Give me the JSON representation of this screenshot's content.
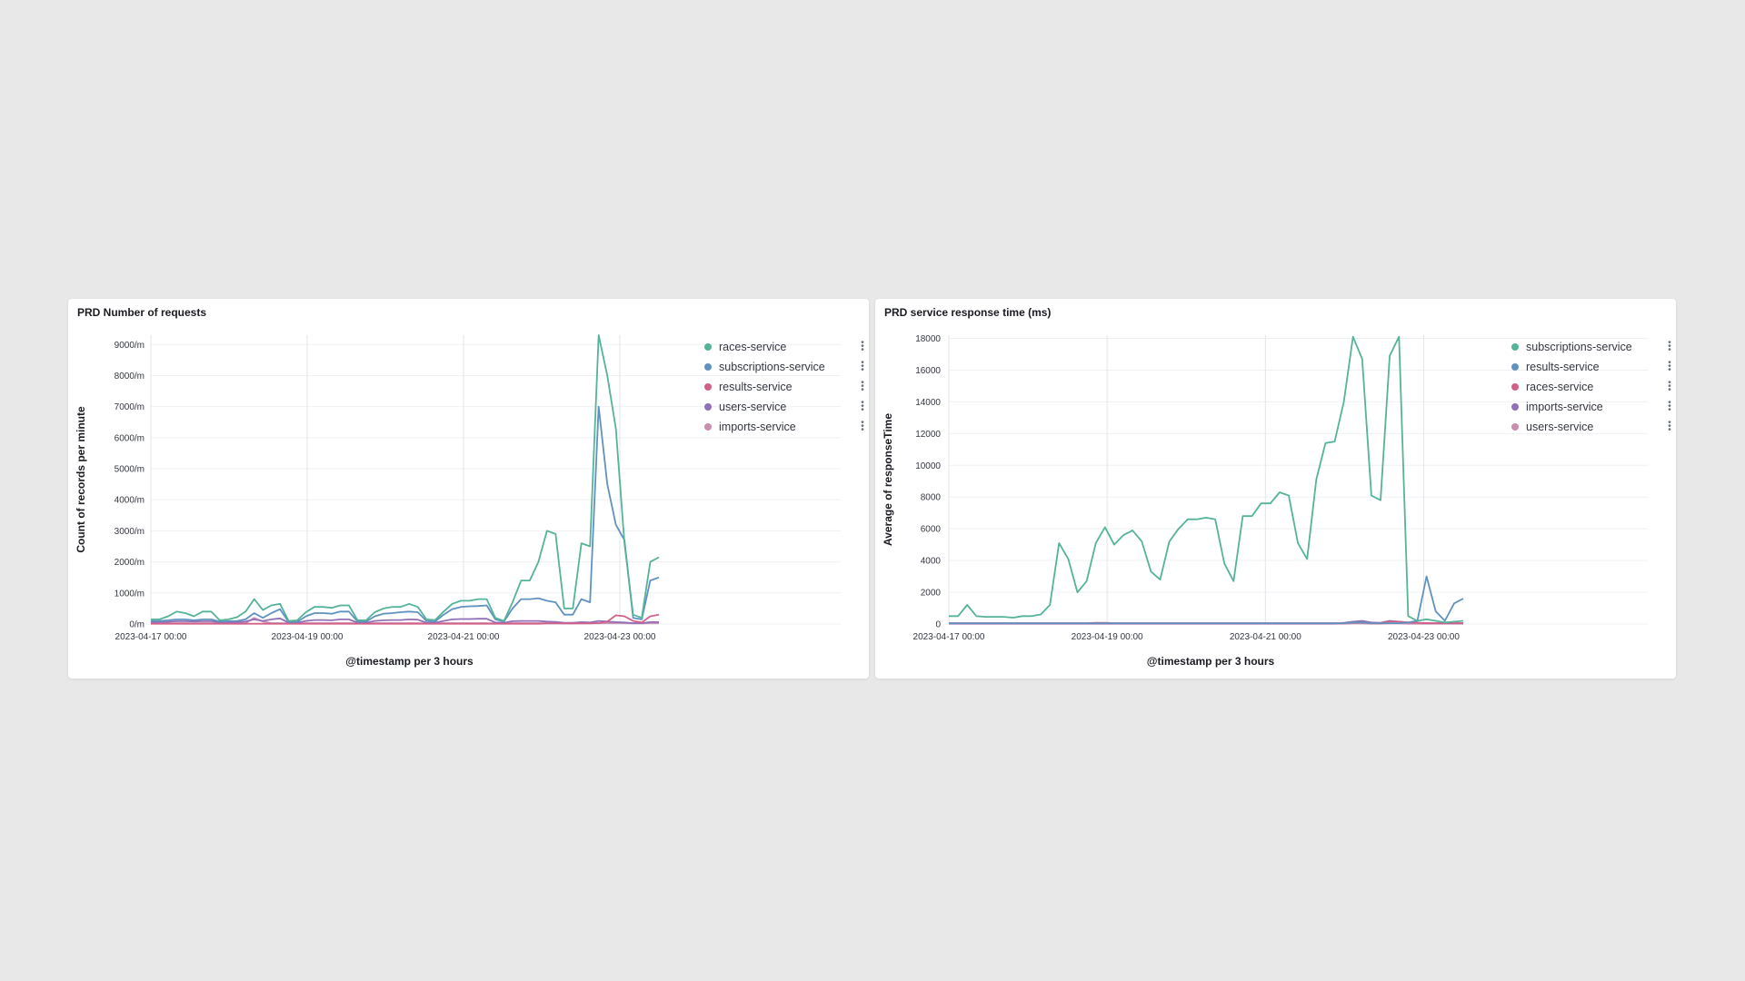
{
  "panels": [
    {
      "title": "PRD Number of requests",
      "legend": [
        {
          "label": "races-service",
          "color": "#54b399"
        },
        {
          "label": "subscriptions-service",
          "color": "#6092c0"
        },
        {
          "label": "results-service",
          "color": "#d36086"
        },
        {
          "label": "users-service",
          "color": "#9170b8"
        },
        {
          "label": "imports-service",
          "color": "#ca8eae"
        }
      ]
    },
    {
      "title": "PRD service response time (ms)",
      "legend": [
        {
          "label": "subscriptions-service",
          "color": "#54b399"
        },
        {
          "label": "results-service",
          "color": "#6092c0"
        },
        {
          "label": "races-service",
          "color": "#d36086"
        },
        {
          "label": "imports-service",
          "color": "#9170b8"
        },
        {
          "label": "users-service",
          "color": "#ca8eae"
        }
      ]
    }
  ],
  "chart_data": [
    {
      "type": "line",
      "title": "PRD Number of requests",
      "xlabel": "@timestamp per 3 hours",
      "ylabel": "Count of records per minute",
      "ylim": [
        0,
        9300
      ],
      "yticks": [
        0,
        1000,
        2000,
        3000,
        4000,
        5000,
        6000,
        7000,
        8000,
        9000
      ],
      "ytick_labels": [
        "0/m",
        "1000/m",
        "2000/m",
        "3000/m",
        "4000/m",
        "5000/m",
        "6000/m",
        "7000/m",
        "8000/m",
        "9000/m"
      ],
      "xlim_hours": [
        0,
        156
      ],
      "xtick_labels": [
        "2023-04-17 00:00",
        "2023-04-19 00:00",
        "2023-04-21 00:00",
        "2023-04-23 00:00"
      ],
      "grid": true,
      "legend_position": "right",
      "series": [
        {
          "name": "races-service",
          "color": "#54b399",
          "values": [
            150,
            150,
            250,
            400,
            350,
            250,
            400,
            400,
            120,
            150,
            220,
            400,
            800,
            450,
            600,
            650,
            100,
            120,
            380,
            550,
            550,
            520,
            600,
            600,
            120,
            120,
            380,
            500,
            550,
            550,
            650,
            550,
            150,
            130,
            400,
            650,
            750,
            750,
            800,
            800,
            200,
            100,
            700,
            1400,
            1400,
            2000,
            3000,
            2900,
            500,
            500,
            2600,
            2500,
            9300,
            8000,
            6300,
            2600,
            300,
            200,
            2000,
            2150
          ]
        },
        {
          "name": "subscriptions-service",
          "color": "#6092c0",
          "values": [
            100,
            100,
            120,
            150,
            150,
            120,
            150,
            150,
            80,
            90,
            100,
            150,
            350,
            200,
            350,
            480,
            60,
            70,
            250,
            350,
            350,
            330,
            400,
            400,
            80,
            80,
            250,
            330,
            350,
            380,
            400,
            380,
            100,
            80,
            300,
            480,
            550,
            570,
            580,
            600,
            150,
            80,
            500,
            800,
            800,
            830,
            750,
            700,
            300,
            300,
            800,
            700,
            7000,
            4500,
            3200,
            2700,
            200,
            150,
            1400,
            1500
          ]
        },
        {
          "name": "results-service",
          "color": "#d36086",
          "values": [
            10,
            10,
            10,
            10,
            10,
            10,
            10,
            10,
            10,
            10,
            10,
            10,
            10,
            10,
            10,
            10,
            10,
            10,
            10,
            10,
            10,
            10,
            10,
            10,
            10,
            10,
            10,
            10,
            10,
            10,
            10,
            10,
            10,
            10,
            10,
            10,
            10,
            10,
            10,
            10,
            10,
            10,
            10,
            10,
            10,
            10,
            20,
            20,
            20,
            20,
            20,
            20,
            30,
            80,
            280,
            250,
            100,
            50,
            250,
            300
          ]
        },
        {
          "name": "users-service",
          "color": "#9170b8",
          "values": [
            60,
            60,
            70,
            90,
            90,
            80,
            90,
            90,
            50,
            50,
            60,
            80,
            150,
            100,
            150,
            180,
            40,
            40,
            100,
            130,
            130,
            120,
            150,
            150,
            40,
            40,
            100,
            120,
            130,
            130,
            150,
            140,
            40,
            40,
            100,
            150,
            160,
            160,
            170,
            170,
            50,
            40,
            90,
            100,
            100,
            100,
            80,
            70,
            40,
            40,
            60,
            50,
            100,
            80,
            60,
            50,
            30,
            30,
            60,
            60
          ]
        },
        {
          "name": "imports-service",
          "color": "#ca8eae",
          "values": [
            20,
            20,
            20,
            30,
            30,
            20,
            30,
            30,
            20,
            20,
            20,
            30,
            200,
            80,
            30,
            30,
            20,
            20,
            30,
            30,
            30,
            30,
            30,
            30,
            20,
            20,
            30,
            30,
            30,
            30,
            30,
            30,
            20,
            20,
            30,
            30,
            30,
            30,
            30,
            30,
            20,
            20,
            30,
            30,
            30,
            30,
            30,
            30,
            20,
            20,
            30,
            30,
            30,
            30,
            30,
            30,
            20,
            20,
            30,
            30
          ]
        }
      ]
    },
    {
      "type": "line",
      "title": "PRD service response time (ms)",
      "xlabel": "@timestamp per 3 hours",
      "ylabel": "Average of responseTime",
      "ylim": [
        0,
        18200
      ],
      "yticks": [
        0,
        2000,
        4000,
        6000,
        8000,
        10000,
        12000,
        14000,
        16000,
        18000
      ],
      "ytick_labels": [
        "0",
        "2000",
        "4000",
        "6000",
        "8000",
        "10000",
        "12000",
        "14000",
        "16000",
        "18000"
      ],
      "xlim_hours": [
        0,
        156
      ],
      "xtick_labels": [
        "2023-04-17 00:00",
        "2023-04-19 00:00",
        "2023-04-21 00:00",
        "2023-04-23 00:00"
      ],
      "grid": true,
      "legend_position": "right",
      "series": [
        {
          "name": "subscriptions-service",
          "color": "#54b399",
          "values": [
            500,
            500,
            1200,
            500,
            450,
            450,
            450,
            400,
            500,
            500,
            600,
            1200,
            5100,
            4100,
            2000,
            2700,
            5100,
            6100,
            5000,
            5600,
            5900,
            5200,
            3300,
            2800,
            5200,
            6000,
            6600,
            6600,
            6700,
            6600,
            3800,
            2700,
            6800,
            6800,
            7600,
            7600,
            8300,
            8100,
            5100,
            4100,
            9100,
            11400,
            11500,
            14000,
            18100,
            16700,
            8100,
            7800,
            16900,
            18100,
            500,
            200,
            300,
            200,
            100,
            150,
            200
          ]
        },
        {
          "name": "results-service",
          "color": "#6092c0",
          "values": [
            50,
            50,
            50,
            50,
            50,
            50,
            50,
            50,
            50,
            50,
            50,
            50,
            50,
            50,
            50,
            50,
            50,
            50,
            50,
            50,
            50,
            50,
            50,
            50,
            50,
            50,
            50,
            50,
            50,
            50,
            50,
            50,
            50,
            50,
            50,
            50,
            50,
            50,
            50,
            50,
            50,
            50,
            50,
            50,
            100,
            100,
            50,
            50,
            50,
            50,
            100,
            200,
            3000,
            800,
            200,
            1300,
            1600
          ]
        },
        {
          "name": "races-service",
          "color": "#d36086",
          "values": [
            60,
            60,
            60,
            60,
            60,
            60,
            60,
            60,
            60,
            60,
            60,
            60,
            60,
            60,
            60,
            60,
            80,
            80,
            60,
            60,
            60,
            60,
            60,
            60,
            60,
            60,
            60,
            60,
            60,
            60,
            60,
            60,
            60,
            60,
            60,
            60,
            60,
            60,
            60,
            60,
            60,
            60,
            60,
            60,
            80,
            100,
            60,
            60,
            150,
            150,
            100,
            80,
            60,
            60,
            60,
            60,
            60
          ]
        },
        {
          "name": "imports-service",
          "color": "#9170b8",
          "values": [
            30,
            30,
            30,
            30,
            30,
            30,
            30,
            30,
            30,
            30,
            30,
            30,
            30,
            30,
            30,
            30,
            30,
            30,
            30,
            30,
            30,
            30,
            30,
            30,
            30,
            30,
            30,
            30,
            30,
            30,
            30,
            30,
            30,
            30,
            30,
            30,
            30,
            30,
            30,
            30,
            30,
            30,
            30,
            80,
            150,
            200,
            100,
            80,
            200,
            150,
            100,
            80,
            50,
            50,
            50,
            50,
            50
          ]
        },
        {
          "name": "users-service",
          "color": "#ca8eae",
          "values": [
            20,
            20,
            20,
            20,
            20,
            20,
            20,
            20,
            20,
            20,
            20,
            20,
            20,
            20,
            20,
            20,
            20,
            20,
            20,
            20,
            20,
            20,
            20,
            20,
            20,
            20,
            20,
            20,
            20,
            20,
            20,
            20,
            20,
            20,
            20,
            20,
            20,
            20,
            20,
            20,
            20,
            20,
            20,
            20,
            40,
            40,
            20,
            20,
            40,
            40,
            20,
            20,
            20,
            20,
            20,
            20,
            20
          ]
        }
      ]
    }
  ]
}
